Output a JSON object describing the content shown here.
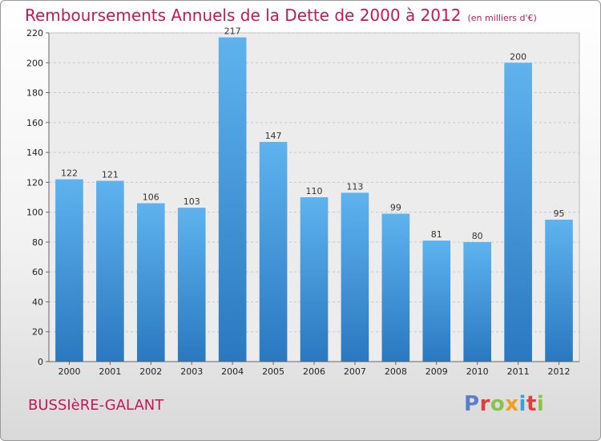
{
  "chart_data": {
    "type": "bar",
    "title": "Remboursements Annuels de la Dette de 2000 à 2012",
    "subtitle": "(en milliers d'€)",
    "categories": [
      "2000",
      "2001",
      "2002",
      "2003",
      "2004",
      "2005",
      "2006",
      "2007",
      "2008",
      "2009",
      "2010",
      "2011",
      "2012"
    ],
    "values": [
      122,
      121,
      106,
      103,
      217,
      147,
      110,
      113,
      99,
      81,
      80,
      200,
      95
    ],
    "xlabel": "",
    "ylabel": "",
    "ylim": [
      0,
      220
    ],
    "yticks": [
      0,
      20,
      40,
      60,
      80,
      100,
      120,
      140,
      160,
      180,
      200,
      220
    ],
    "grid": true,
    "bar_color": "#3a8fd6"
  },
  "footer": {
    "town": "BUSSIèRE-GALANT",
    "logo": "Proxiti",
    "logo_colors": [
      "#5a7fc8",
      "#e23c3c",
      "#8bc34a",
      "#f0a020",
      "#3aa0d8",
      "#e23c3c",
      "#8bc34a"
    ]
  }
}
